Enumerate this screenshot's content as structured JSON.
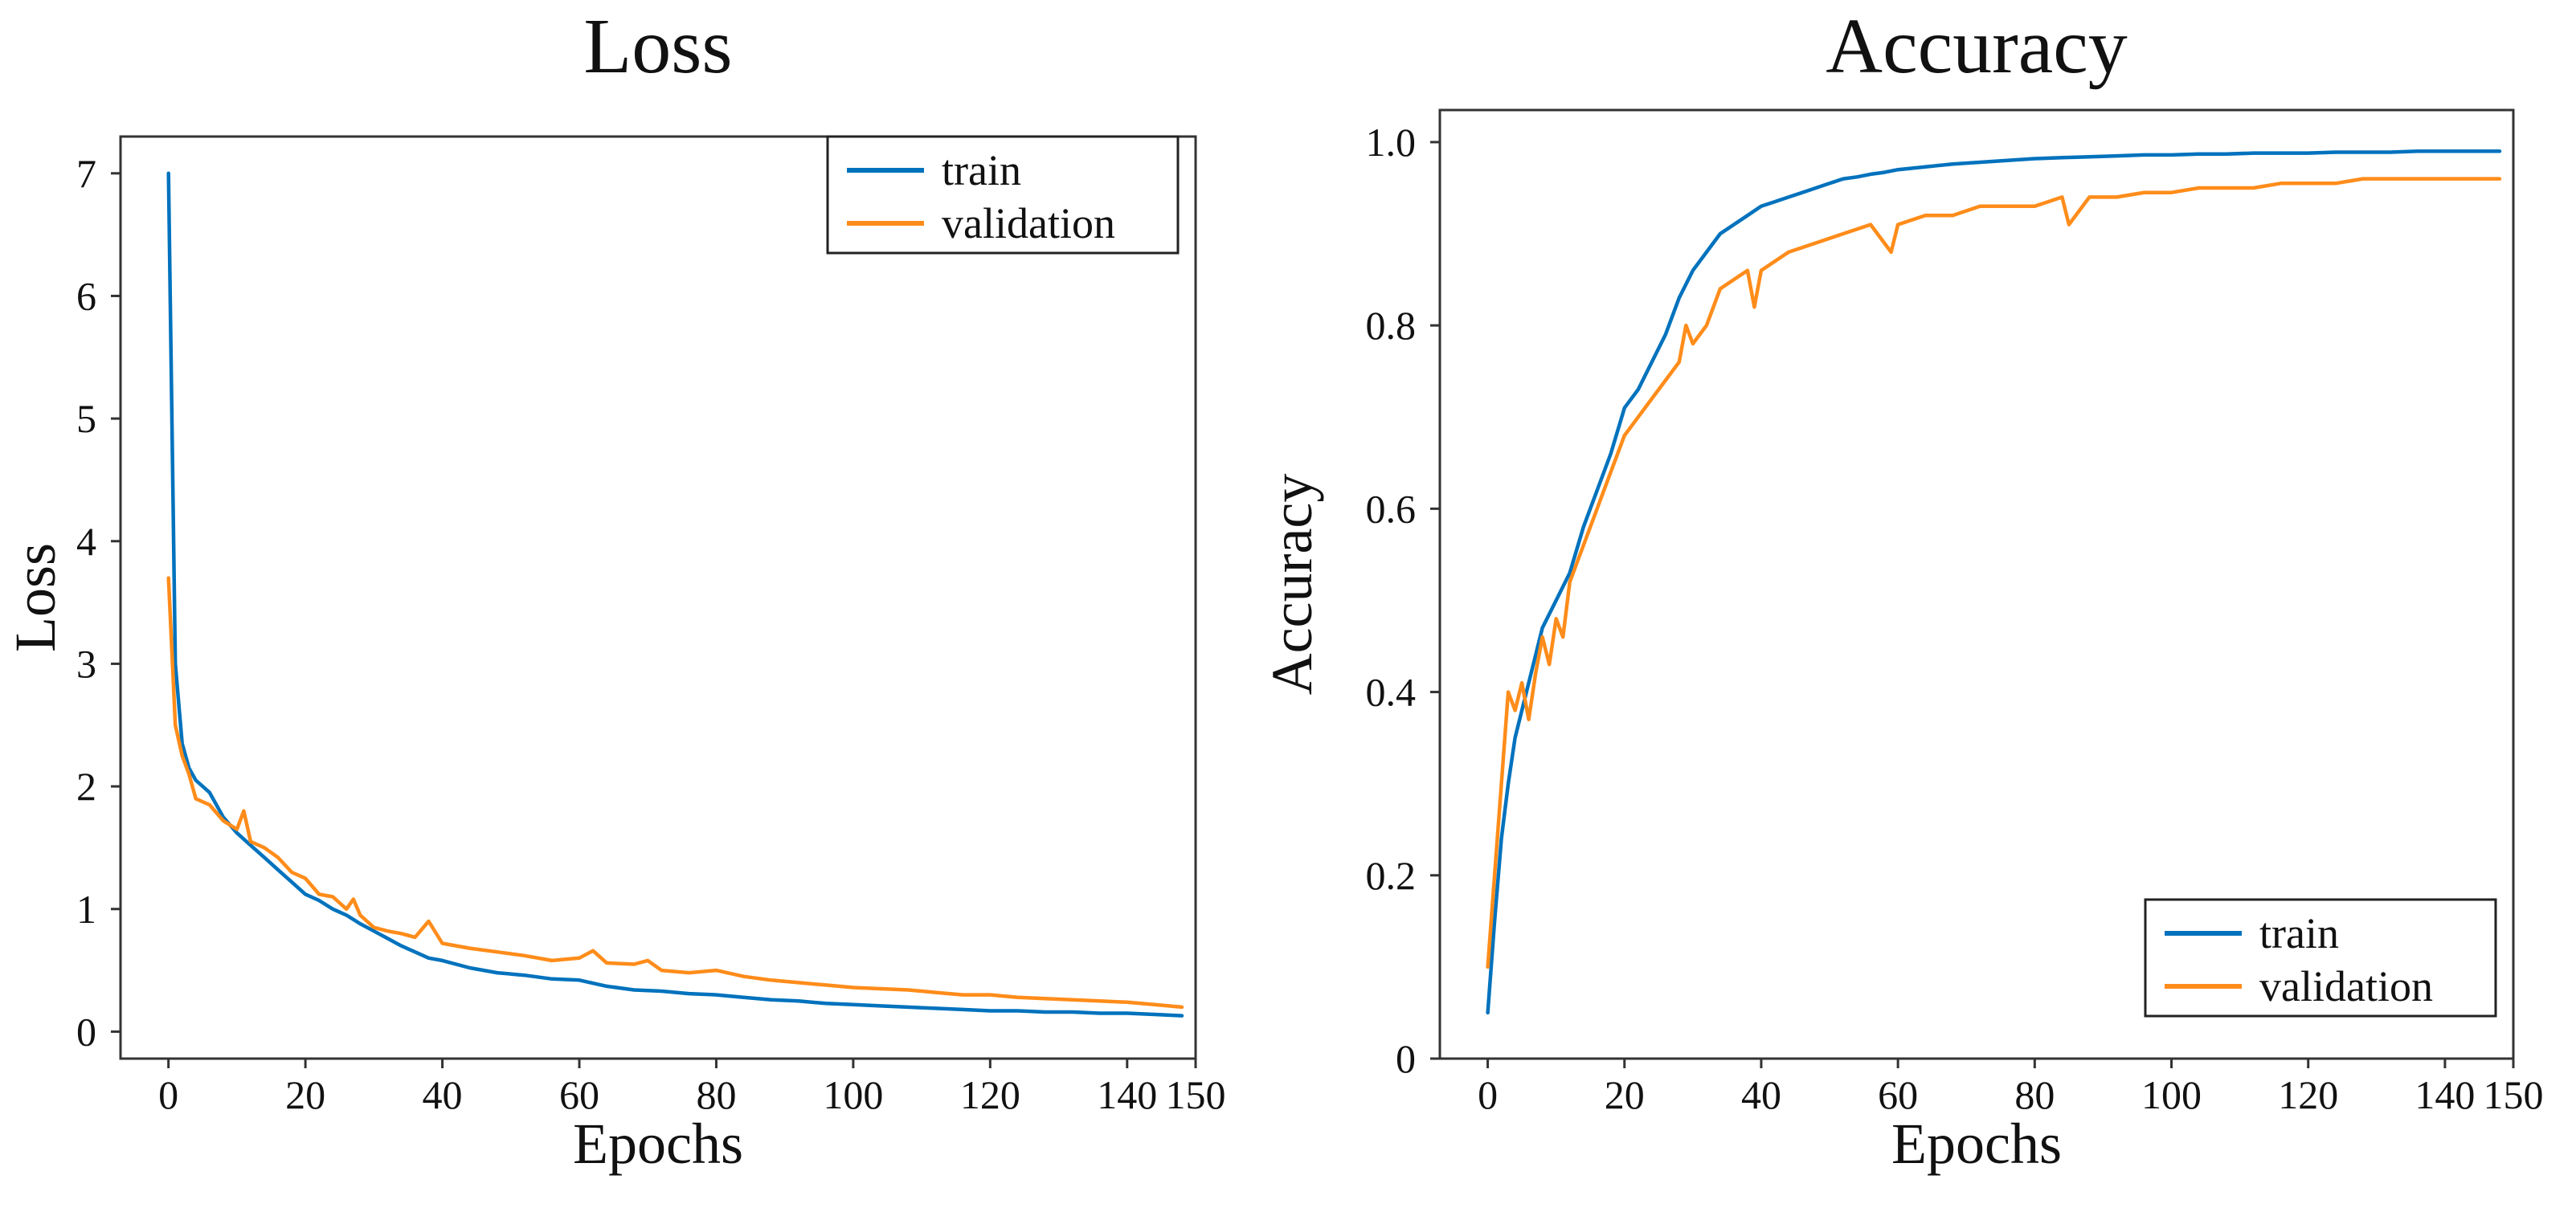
{
  "chart_data": [
    {
      "type": "line",
      "title": "Loss",
      "xlabel": "Epochs",
      "ylabel": "Loss",
      "xlim": [
        -7,
        150
      ],
      "ylim": [
        -0.22,
        7.3
      ],
      "xticks": [
        0,
        20,
        40,
        60,
        80,
        100,
        120,
        140,
        150
      ],
      "yticks": [
        0,
        1,
        2,
        3,
        4,
        5,
        6,
        7
      ],
      "ytick_labels": [
        "0",
        "1",
        "2",
        "3",
        "4",
        "5",
        "6",
        "7"
      ],
      "grid": false,
      "legend_position": "top-right",
      "series": [
        {
          "name": "train",
          "color": "#0072BD",
          "x": [
            0,
            1,
            2,
            3,
            4,
            6,
            8,
            10,
            12,
            14,
            16,
            18,
            20,
            22,
            24,
            26,
            28,
            30,
            32,
            34,
            36,
            38,
            40,
            44,
            48,
            52,
            56,
            60,
            64,
            68,
            72,
            76,
            80,
            84,
            88,
            92,
            96,
            100,
            104,
            108,
            112,
            116,
            120,
            124,
            128,
            132,
            136,
            140,
            144,
            148
          ],
          "values": [
            7.0,
            3.0,
            2.35,
            2.15,
            2.05,
            1.95,
            1.75,
            1.62,
            1.52,
            1.42,
            1.32,
            1.22,
            1.12,
            1.07,
            1.0,
            0.95,
            0.88,
            0.82,
            0.76,
            0.7,
            0.65,
            0.6,
            0.58,
            0.52,
            0.48,
            0.46,
            0.43,
            0.42,
            0.37,
            0.34,
            0.33,
            0.31,
            0.3,
            0.28,
            0.26,
            0.25,
            0.23,
            0.22,
            0.21,
            0.2,
            0.19,
            0.18,
            0.17,
            0.17,
            0.16,
            0.16,
            0.15,
            0.15,
            0.14,
            0.13
          ]
        },
        {
          "name": "validation",
          "color": "#FF8C1A",
          "x": [
            0,
            1,
            2,
            3,
            4,
            6,
            8,
            10,
            11,
            12,
            14,
            16,
            18,
            20,
            22,
            24,
            26,
            27,
            28,
            30,
            32,
            34,
            36,
            38,
            40,
            44,
            48,
            52,
            56,
            60,
            62,
            64,
            68,
            70,
            72,
            76,
            80,
            84,
            88,
            92,
            96,
            100,
            104,
            108,
            112,
            116,
            120,
            124,
            128,
            132,
            136,
            140,
            144,
            148
          ],
          "values": [
            3.7,
            2.5,
            2.25,
            2.1,
            1.9,
            1.85,
            1.72,
            1.65,
            1.8,
            1.55,
            1.5,
            1.42,
            1.3,
            1.25,
            1.12,
            1.1,
            1.0,
            1.08,
            0.95,
            0.85,
            0.82,
            0.8,
            0.77,
            0.9,
            0.72,
            0.68,
            0.65,
            0.62,
            0.58,
            0.6,
            0.66,
            0.56,
            0.55,
            0.58,
            0.5,
            0.48,
            0.5,
            0.45,
            0.42,
            0.4,
            0.38,
            0.36,
            0.35,
            0.34,
            0.32,
            0.3,
            0.3,
            0.28,
            0.27,
            0.26,
            0.25,
            0.24,
            0.22,
            0.2
          ]
        }
      ]
    },
    {
      "type": "line",
      "title": "Accuracy",
      "xlabel": "Epochs",
      "ylabel": "Accuracy",
      "xlim": [
        -7,
        150
      ],
      "ylim": [
        0,
        1.035
      ],
      "xticks": [
        0,
        20,
        40,
        60,
        80,
        100,
        120,
        140,
        150
      ],
      "yticks": [
        0,
        0.2,
        0.4,
        0.6,
        0.8,
        1.0
      ],
      "ytick_labels": [
        "0",
        "0.2",
        "0.4",
        "0.6",
        "0.8",
        "1.0"
      ],
      "grid": false,
      "legend_position": "bottom-right",
      "series": [
        {
          "name": "train",
          "color": "#0072BD",
          "x": [
            0,
            1,
            2,
            3,
            4,
            6,
            8,
            10,
            12,
            14,
            16,
            18,
            20,
            22,
            24,
            26,
            28,
            30,
            32,
            34,
            36,
            38,
            40,
            42,
            44,
            46,
            48,
            50,
            52,
            54,
            56,
            58,
            60,
            64,
            68,
            72,
            76,
            80,
            84,
            88,
            92,
            96,
            100,
            104,
            108,
            112,
            116,
            120,
            124,
            128,
            132,
            136,
            140,
            144,
            148
          ],
          "values": [
            0.05,
            0.15,
            0.24,
            0.3,
            0.35,
            0.41,
            0.47,
            0.5,
            0.53,
            0.58,
            0.62,
            0.66,
            0.71,
            0.73,
            0.76,
            0.79,
            0.83,
            0.86,
            0.88,
            0.9,
            0.91,
            0.92,
            0.93,
            0.935,
            0.94,
            0.945,
            0.95,
            0.955,
            0.96,
            0.962,
            0.965,
            0.967,
            0.97,
            0.973,
            0.976,
            0.978,
            0.98,
            0.982,
            0.983,
            0.984,
            0.985,
            0.986,
            0.986,
            0.987,
            0.987,
            0.988,
            0.988,
            0.988,
            0.989,
            0.989,
            0.989,
            0.99,
            0.99,
            0.99,
            0.99
          ]
        },
        {
          "name": "validation",
          "color": "#FF8C1A",
          "x": [
            0,
            1,
            2,
            3,
            4,
            5,
            6,
            7,
            8,
            9,
            10,
            11,
            12,
            14,
            16,
            18,
            20,
            22,
            24,
            26,
            28,
            29,
            30,
            32,
            34,
            36,
            38,
            39,
            40,
            44,
            48,
            52,
            56,
            59,
            60,
            64,
            68,
            72,
            76,
            80,
            84,
            85,
            88,
            92,
            96,
            100,
            104,
            108,
            112,
            116,
            120,
            124,
            128,
            132,
            136,
            140,
            144,
            148
          ],
          "values": [
            0.1,
            0.2,
            0.3,
            0.4,
            0.38,
            0.41,
            0.37,
            0.42,
            0.46,
            0.43,
            0.48,
            0.46,
            0.52,
            0.56,
            0.6,
            0.64,
            0.68,
            0.7,
            0.72,
            0.74,
            0.76,
            0.8,
            0.78,
            0.8,
            0.84,
            0.85,
            0.86,
            0.82,
            0.86,
            0.88,
            0.89,
            0.9,
            0.91,
            0.88,
            0.91,
            0.92,
            0.92,
            0.93,
            0.93,
            0.93,
            0.94,
            0.91,
            0.94,
            0.94,
            0.945,
            0.945,
            0.95,
            0.95,
            0.95,
            0.955,
            0.955,
            0.955,
            0.96,
            0.96,
            0.96,
            0.96,
            0.96,
            0.96
          ]
        }
      ]
    }
  ]
}
